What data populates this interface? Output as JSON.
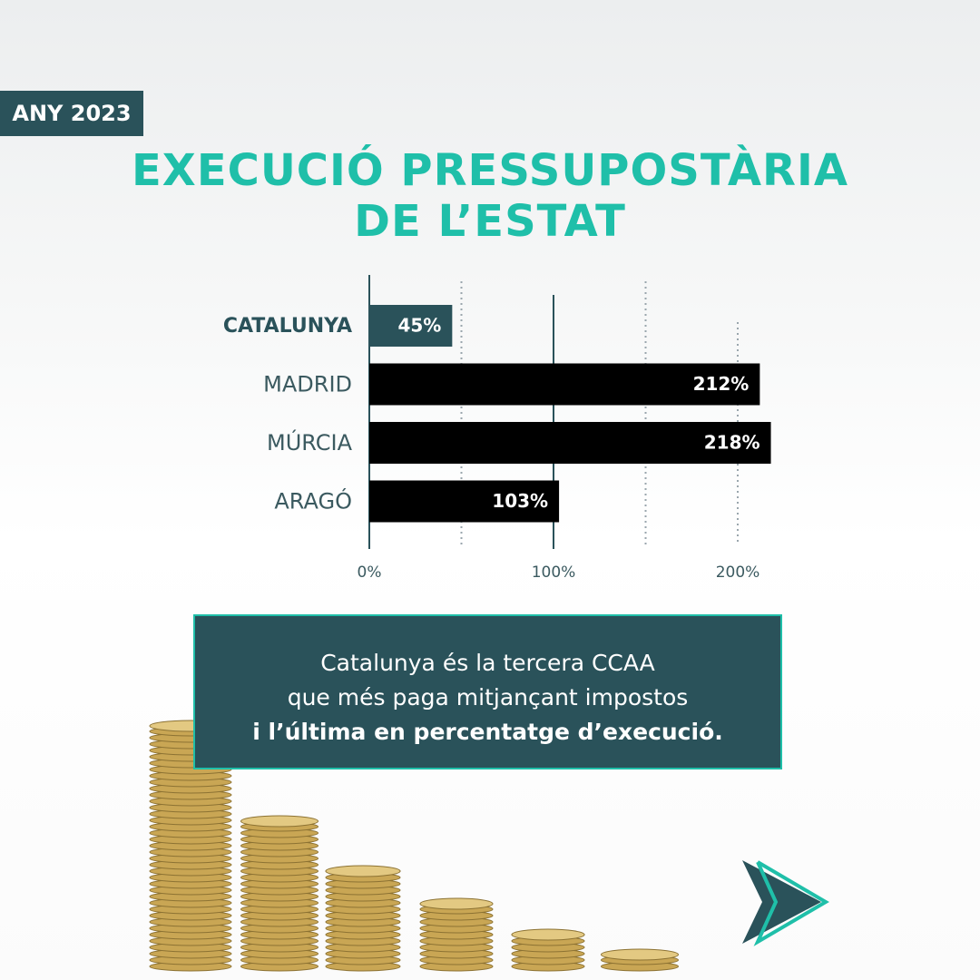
{
  "badge": "ANY 2023",
  "chart_data": {
    "type": "bar",
    "orientation": "horizontal",
    "title": "EXECUCIÓ PRESSUPOSTÀRIA DE L’ESTAT",
    "categories": [
      "CATALUNYA",
      "MADRID",
      "MÚRCIA",
      "ARAGÓ"
    ],
    "values": [
      45,
      212,
      218,
      103
    ],
    "value_labels": [
      "45%",
      "212%",
      "218%",
      "103%"
    ],
    "colors": [
      "#2a525a",
      "#000000",
      "#000000",
      "#000000"
    ],
    "highlight_category": "CATALUNYA",
    "xlim": [
      0,
      230
    ],
    "xticks": [
      {
        "value": 0,
        "label": "0%"
      },
      {
        "value": 100,
        "label": "100%"
      },
      {
        "value": 200,
        "label": "200%"
      }
    ],
    "minor_gridlines": [
      50,
      150
    ],
    "reference_line": 100,
    "grid": true
  },
  "annotation": [
    "Catalunya és la tercera CCAA",
    "que més paga mitjançant impostos",
    "i l’última en percentatge d’execució."
  ]
}
